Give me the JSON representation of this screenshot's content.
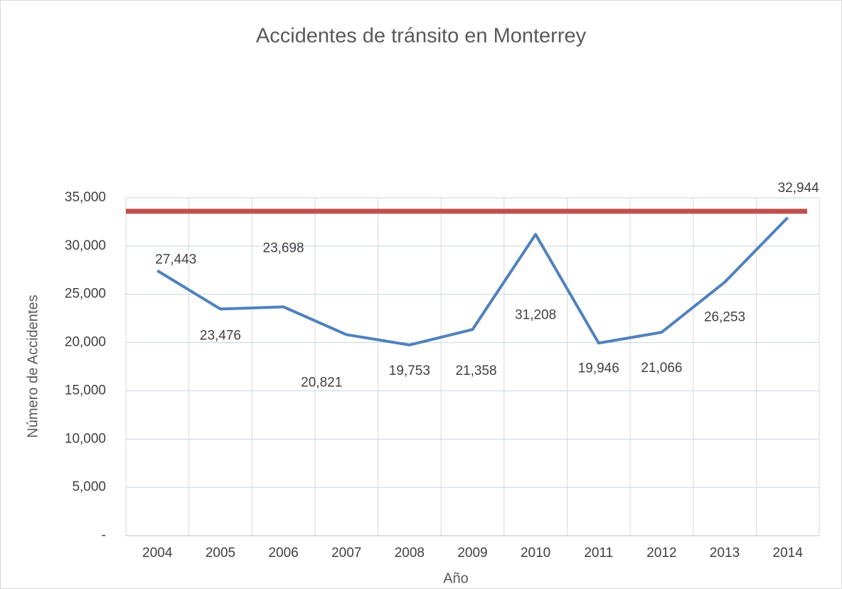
{
  "chart_data": {
    "type": "line",
    "title": "Accidentes de tránsito en Monterrey",
    "x_label": "Año",
    "y_label": "Número de Accidentes",
    "categories": [
      "2004",
      "2005",
      "2006",
      "2007",
      "2008",
      "2009",
      "2010",
      "2011",
      "2012",
      "2013",
      "2014"
    ],
    "series": [
      {
        "color": "#4f81bd",
        "values": [
          27443,
          23476,
          23698,
          20821,
          19753,
          21358,
          31208,
          19946,
          21066,
          26253,
          32944
        ],
        "value_labels": [
          "27,443",
          "23,476",
          "23,698",
          "20,821",
          "19,753",
          "21,358",
          "31,208",
          "19,946",
          "21,066",
          "26,253",
          "32,944"
        ]
      }
    ],
    "reference_line": {
      "value": 33600,
      "color": "#c0504d"
    },
    "ylim": [
      0,
      35000
    ],
    "yticks": [
      {
        "value": 0,
        "label": "-"
      },
      {
        "value": 5000,
        "label": "5,000"
      },
      {
        "value": 10000,
        "label": "10,000"
      },
      {
        "value": 15000,
        "label": "15,000"
      },
      {
        "value": 20000,
        "label": "20,000"
      },
      {
        "value": 25000,
        "label": "25,000"
      },
      {
        "value": 30000,
        "label": "30,000"
      },
      {
        "value": 35000,
        "label": "35,000"
      }
    ],
    "grid": true
  }
}
